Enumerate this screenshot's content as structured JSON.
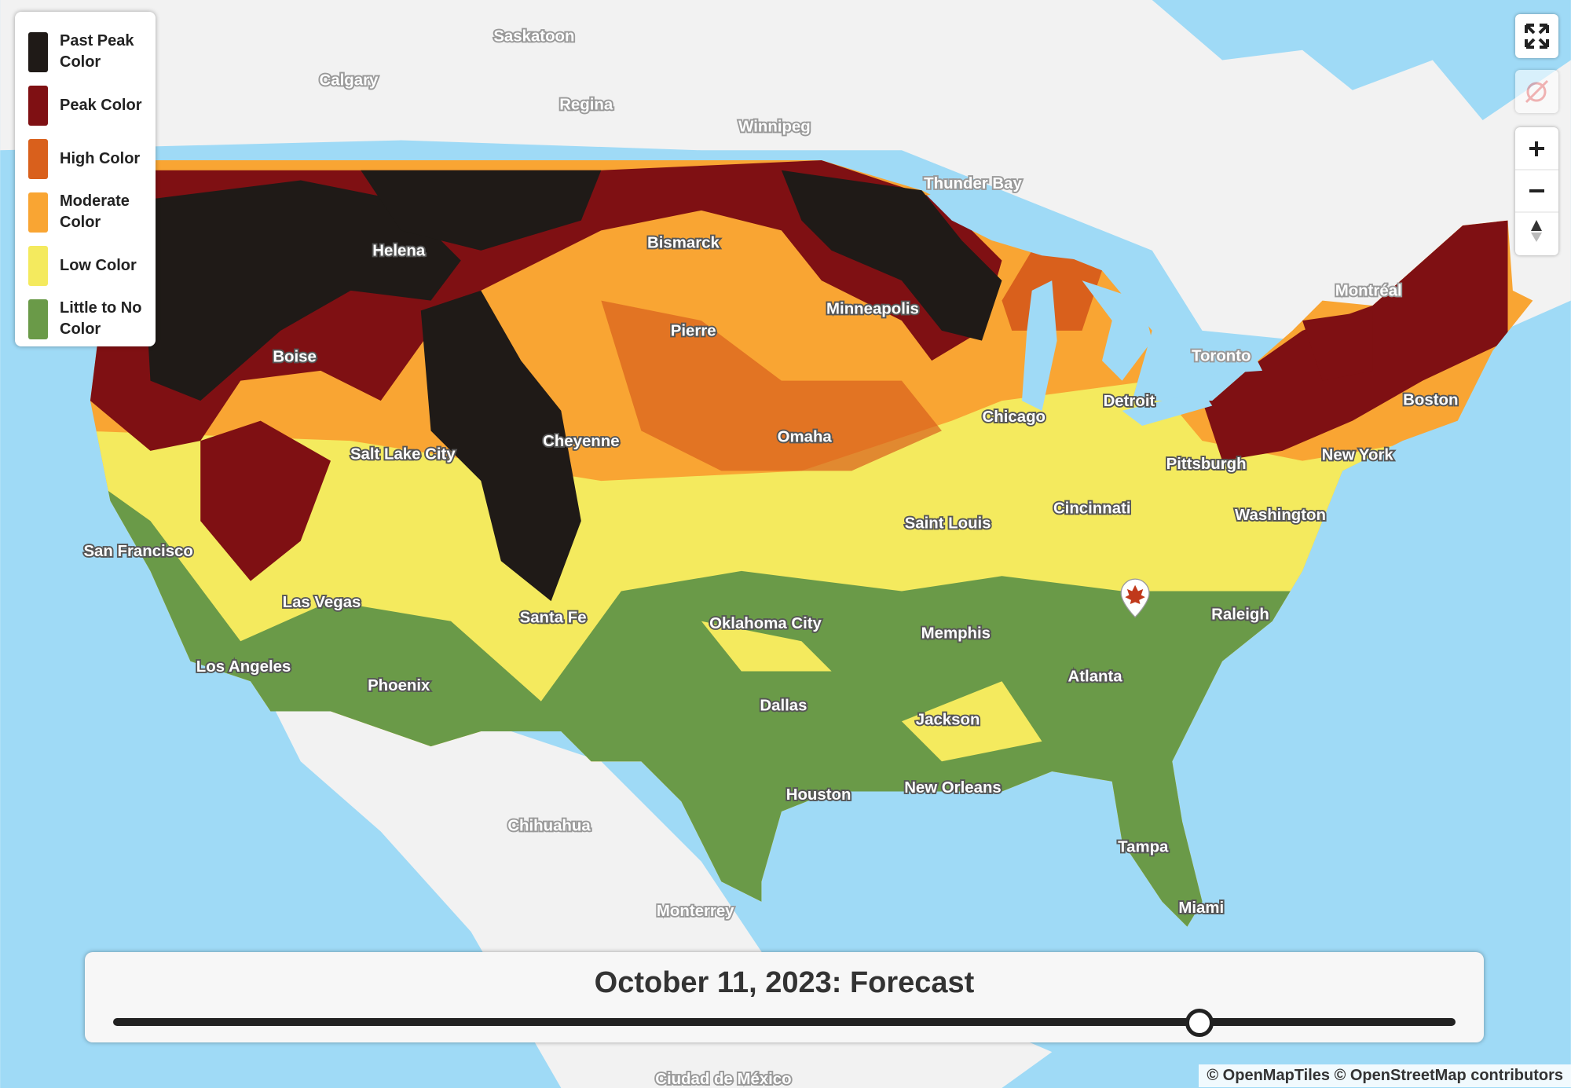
{
  "legend": {
    "items": [
      "Past Peak Color",
      "Peak Color",
      "High Color",
      "Moderate Color",
      "Low Color",
      "Little to No Color"
    ]
  },
  "map": {
    "cities": [
      "Saskatoon",
      "Calgary",
      "Regina",
      "Winnipeg",
      "Thunder Bay",
      "Montréal",
      "Toronto",
      "Helena",
      "Bismarck",
      "Minneapolis",
      "Pierre",
      "Boise",
      "Salt Lake City",
      "Cheyenne",
      "Omaha",
      "Chicago",
      "Detroit",
      "Boston",
      "New York",
      "Pittsburgh",
      "Cincinnati",
      "Washington",
      "Saint Louis",
      "San Francisco",
      "Las Vegas",
      "Santa Fe",
      "Oklahoma City",
      "Memphis",
      "Raleigh",
      "Los Angeles",
      "Phoenix",
      "Atlanta",
      "Dallas",
      "Jackson",
      "Houston",
      "New Orleans",
      "Chihuahua",
      "Tampa",
      "Monterrey",
      "Miami",
      "Ciudad de México"
    ]
  },
  "timeline": {
    "title": "October 11, 2023: Forecast"
  },
  "attribution": "© OpenMapTiles © OpenStreetMap contributors"
}
